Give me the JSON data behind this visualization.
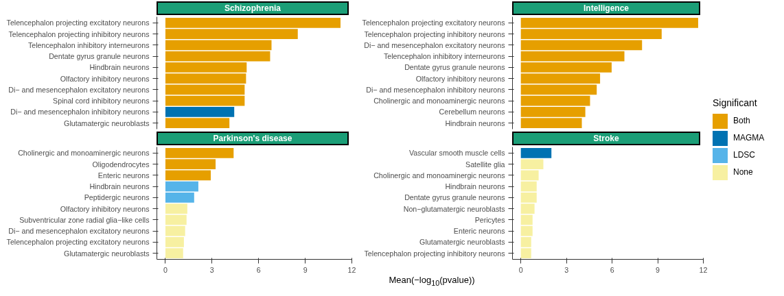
{
  "chart_data": [
    {
      "type": "bar",
      "orientation": "horizontal",
      "title": "Schizophrenia",
      "categories": [
        "Telencephalon projecting excitatory neurons",
        "Telencephalon projecting inhibitory neurons",
        "Telencephalon inhibitory interneurons",
        "Dentate gyrus granule neurons",
        "Hindbrain neurons",
        "Olfactory inhibitory neurons",
        "Di− and mesencephalon excitatory neurons",
        "Spinal cord inhibitory neurons",
        "Di− and mesencephalon inhibitory neurons",
        "Glutamatergic neuroblasts"
      ],
      "values": [
        11.27,
        8.52,
        6.83,
        6.74,
        5.23,
        5.19,
        5.1,
        5.1,
        4.43,
        4.12
      ],
      "colors": [
        "#e69f00",
        "#e69f00",
        "#e69f00",
        "#e69f00",
        "#e69f00",
        "#e69f00",
        "#e69f00",
        "#e69f00",
        "#0072b2",
        "#e69f00"
      ],
      "xlim": [
        -0.55,
        12
      ],
      "xticks": [
        0,
        3,
        6,
        9,
        12
      ],
      "tick_labels": "y",
      "grid": false
    },
    {
      "type": "bar",
      "orientation": "horizontal",
      "title": "Intelligence",
      "legend": "right",
      "legend_title": "Significant",
      "categories": [
        "Telencephalon projecting excitatory neurons",
        "Telencephalon projecting inhibitory neurons",
        "Di− and mesencephalon excitatory neurons",
        "Telencephalon inhibitory interneurons",
        "Dentate gyrus granule neurons",
        "Olfactory inhibitory neurons",
        "Di− and mesencephalon inhibitory neurons",
        "Cholinergic and monoaminergic neurons",
        "Cerebellum neurons",
        "Hindbrain neurons"
      ],
      "series": [
        {
          "name": "Both",
          "color": "#e69f00",
          "values": [
            11.66,
            9.26,
            7.97,
            6.81,
            5.97,
            5.21,
            4.99,
            4.55,
            4.24,
            4.01
          ]
        },
        {
          "name": "MAGMA",
          "color": "#0072b2",
          "values": [
            null,
            null,
            null,
            null,
            null,
            null,
            null,
            null,
            null,
            null
          ]
        },
        {
          "name": "LDSC",
          "color": "#56b4e9",
          "values": [
            null,
            null,
            null,
            null,
            null,
            null,
            null,
            null,
            null,
            null
          ]
        },
        {
          "name": "None",
          "color": "#f7f0a1",
          "values": [
            null,
            null,
            null,
            null,
            null,
            null,
            null,
            null,
            null,
            null
          ]
        }
      ],
      "xlim": [
        -0.55,
        12
      ],
      "xticks": [
        0,
        3,
        6,
        9,
        12
      ],
      "tick_labels": "y",
      "grid": false
    },
    {
      "type": "bar",
      "orientation": "horizontal",
      "title": "Parkinson's disease",
      "xlabel": "Mean(−log$_{10}$(pvalue))",
      "categories": [
        "Cholinergic and monoaminergic neurons",
        "Oligodendrocytes",
        "Enteric neurons",
        "Hindbrain neurons",
        "Peptidergic neurons",
        "Olfactory inhibitory neurons",
        "Subventricular zone radial glia−like cells",
        "Di− and mesencephalon excitatory neurons",
        "Telencephalon projecting excitatory neurons",
        "Glutamatergic neuroblasts"
      ],
      "values": [
        4.39,
        3.23,
        2.92,
        2.12,
        1.85,
        1.41,
        1.36,
        1.27,
        1.19,
        1.14
      ],
      "colors": [
        "#e69f00",
        "#e69f00",
        "#e69f00",
        "#56b4e9",
        "#56b4e9",
        "#f7f0a1",
        "#f7f0a1",
        "#f7f0a1",
        "#f7f0a1",
        "#f7f0a1"
      ],
      "xlim": [
        -0.55,
        12
      ],
      "xticks": [
        0,
        3,
        6,
        9,
        12
      ],
      "grid": false
    },
    {
      "type": "bar",
      "orientation": "horizontal",
      "title": "Stroke",
      "categories": [
        "Vascular smooth muscle cells",
        "Satellite glia",
        "Cholinergic and monoaminergic neurons",
        "Hindbrain neurons",
        "Dentate gyrus granule neurons",
        "Non−glutamatergic neuroblasts",
        "Pericytes",
        "Enteric neurons",
        "Glutamatergic neuroblasts",
        "Telencephalon projecting inhibitory neurons"
      ],
      "values": [
        2.01,
        1.48,
        1.17,
        1.04,
        1.04,
        0.9,
        0.77,
        0.77,
        0.68,
        0.68
      ],
      "colors": [
        "#0072b2",
        "#f7f0a1",
        "#f7f0a1",
        "#f7f0a1",
        "#f7f0a1",
        "#f7f0a1",
        "#f7f0a1",
        "#f7f0a1",
        "#f7f0a1",
        "#f7f0a1"
      ],
      "xlim": [
        -0.55,
        12
      ],
      "xticks": [
        0,
        3,
        6,
        9,
        12
      ],
      "grid": false
    }
  ]
}
